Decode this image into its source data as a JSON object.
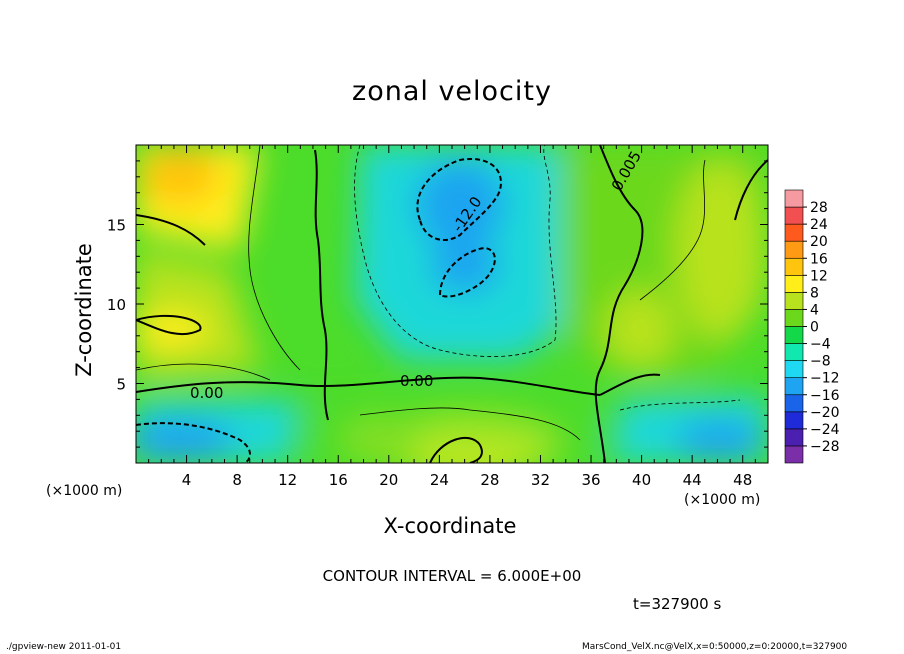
{
  "chart_data": {
    "type": "heatmap",
    "title": "zonal velocity",
    "xlabel": "X-coordinate",
    "ylabel": "Z-coordinate",
    "x_unit": "(×1000 m)",
    "y_unit": "(×1000 m)",
    "xlim": [
      0,
      50
    ],
    "ylim": [
      0,
      20
    ],
    "x_ticks": [
      4,
      8,
      12,
      16,
      20,
      24,
      28,
      32,
      36,
      40,
      44,
      48
    ],
    "y_ticks": [
      5,
      10,
      15
    ],
    "colorbar": {
      "levels": [
        28,
        24,
        20,
        16,
        12,
        8,
        4,
        0,
        -4,
        -8,
        -12,
        -16,
        -20,
        -24,
        -28
      ],
      "colors": [
        "#7a2ea8",
        "#4b1fb0",
        "#1f2bd8",
        "#1a64ea",
        "#1ea4f0",
        "#1fd8f2",
        "#10e8b0",
        "#12d84a",
        "#6cd81c",
        "#b8e21e",
        "#ffee1a",
        "#ffc40e",
        "#ff9a14",
        "#ff5a1e",
        "#f25050",
        "#f59aa0"
      ]
    },
    "contour_interval": "CONTOUR INTERVAL = 6.000E+00",
    "contour_labels": [
      "0.00",
      "0.00",
      "-12.0",
      "0.005"
    ],
    "field_samples": [
      {
        "x": 2,
        "z": 18,
        "u": 14
      },
      {
        "x": 6,
        "z": 8,
        "u": 12
      },
      {
        "x": 2,
        "z": 2,
        "u": -10
      },
      {
        "x": 25,
        "z": 16,
        "u": -12
      },
      {
        "x": 27,
        "z": 12,
        "u": -12
      },
      {
        "x": 28,
        "z": 2,
        "u": 10
      },
      {
        "x": 46,
        "z": 2,
        "u": -10
      },
      {
        "x": 48,
        "z": 18,
        "u": 10
      }
    ]
  },
  "time_label": "t=327900 s",
  "footer_left": "./gpview-new   2011-01-01",
  "footer_right": "MarsCond_VelX.nc@VelX,x=0:50000,z=0:20000,t=327900"
}
